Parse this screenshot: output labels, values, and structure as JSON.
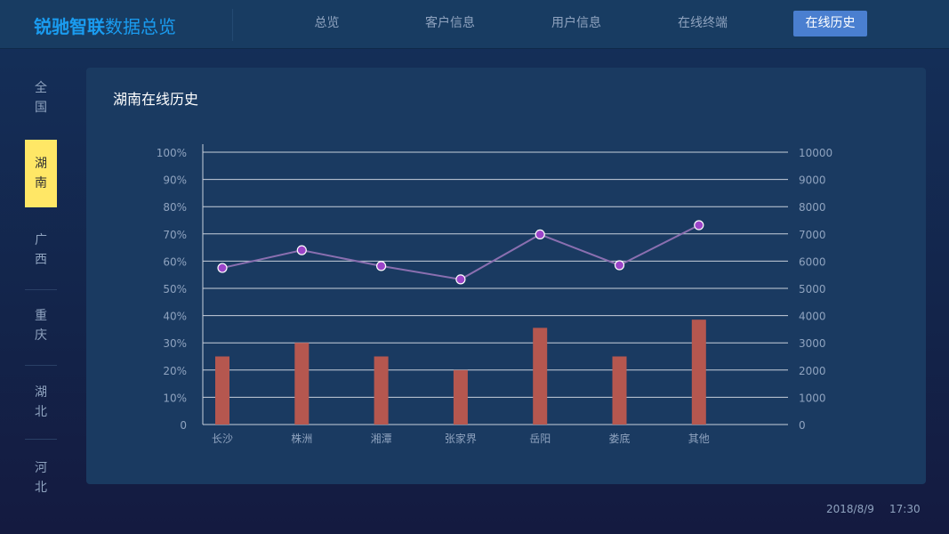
{
  "header": {
    "logo_bold": "锐驰智联",
    "logo_rest": "数据总览",
    "nav": [
      {
        "label": "总览"
      },
      {
        "label": "客户信息"
      },
      {
        "label": "用户信息"
      },
      {
        "label": "在线终端"
      },
      {
        "label": "在线历史",
        "active": true
      }
    ]
  },
  "sidebar": {
    "items": [
      {
        "label": "全国"
      },
      {
        "label": "湖南",
        "active": true
      },
      {
        "label": "广西"
      },
      {
        "label": "重庆"
      },
      {
        "label": "湖北"
      },
      {
        "label": "河北"
      }
    ]
  },
  "panel": {
    "title": "湖南在线历史"
  },
  "footer": {
    "date": "2018/8/9",
    "time": "17:30"
  },
  "chart_data": {
    "type": "bar+line",
    "title": "",
    "categories": [
      "长沙",
      "株洲",
      "湘潭",
      "张家界",
      "岳阳",
      "娄底",
      "其他"
    ],
    "left_axis": {
      "ticks": [
        "0",
        "10%",
        "20%",
        "30%",
        "40%",
        "50%",
        "60%",
        "70%",
        "80%",
        "90%",
        "100%"
      ],
      "range": [
        0,
        100
      ]
    },
    "right_axis": {
      "ticks": [
        "0",
        "1000",
        "2000",
        "3000",
        "4000",
        "5000",
        "6000",
        "7000",
        "8000",
        "9000",
        "10000"
      ],
      "range": [
        0,
        10000
      ]
    },
    "grid": true,
    "series": [
      {
        "type": "bar",
        "axis": "left",
        "values": [
          25,
          30,
          25,
          20,
          35.5,
          25,
          38.5
        ],
        "color": "#b5574f"
      },
      {
        "type": "line",
        "axis": "right",
        "values": [
          5750,
          6400,
          5820,
          5330,
          6980,
          5850,
          7320
        ],
        "color": "#8a6fb0",
        "marker_color": "#9b44c8"
      }
    ]
  }
}
